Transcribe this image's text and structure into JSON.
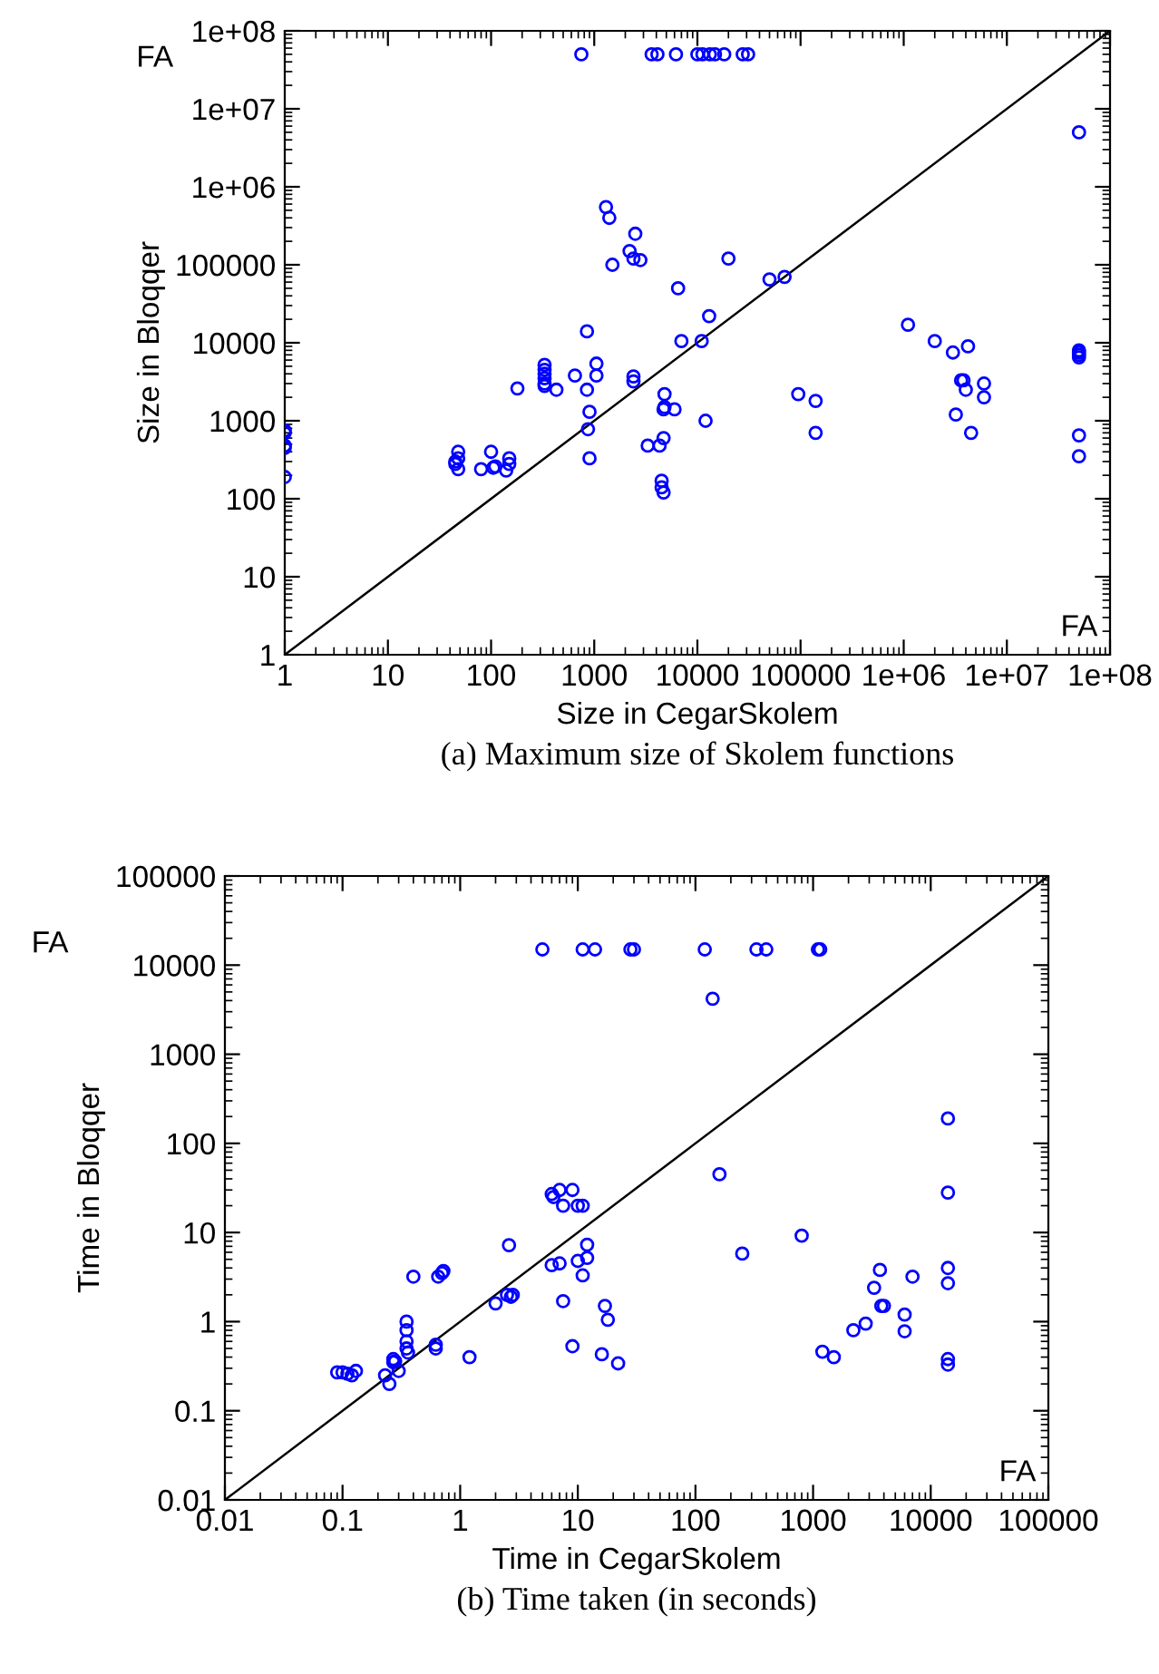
{
  "chart_data": [
    {
      "type": "scatter",
      "title": "(a) Maximum size of Skolem functions",
      "xlabel": "Size in CegarSkolem",
      "ylabel": "Size in Bloqqer",
      "log": "xy",
      "grid": false,
      "annotations": [
        "FA",
        "FA"
      ],
      "xlim": [
        1,
        100000000
      ],
      "ylim": [
        1,
        100000000
      ],
      "xticks": [
        1,
        10,
        100,
        1000,
        10000,
        100000,
        {
          "value": 1000000,
          "label": "1e+06"
        },
        {
          "value": 10000000,
          "label": "1e+07"
        },
        {
          "value": 100000000,
          "label": "1e+08"
        }
      ],
      "yticks": [
        1,
        10,
        100,
        1000,
        10000,
        100000,
        {
          "value": 1000000,
          "label": "1e+06"
        },
        {
          "value": 10000000,
          "label": "1e+07"
        },
        {
          "value": 100000000,
          "label": "1e+08"
        }
      ],
      "series": [
        {
          "color": "#0000ff",
          "marker": "circle",
          "x": [
            750,
            3600,
            4100,
            6200,
            10000,
            11200,
            13200,
            14800,
            18200,
            27500,
            31000,
            50000000,
            1,
            1,
            1,
            1,
            1,
            45,
            48,
            48,
            48,
            45,
            80,
            100,
            110,
            105,
            140,
            150,
            150,
            180,
            330,
            330,
            330,
            330,
            330,
            330,
            430,
            650,
            850,
            900,
            870,
            900,
            1050,
            1050,
            850,
            1300,
            1400,
            1500,
            2200,
            2500,
            2400,
            2800,
            2400,
            2400,
            3300,
            4300,
            4500,
            4500,
            4700,
            4700,
            4800,
            4800,
            4700,
            6000,
            7000,
            6500,
            11000,
            12000,
            13000,
            20000,
            50000,
            70000,
            95000,
            140000,
            140000,
            1100000,
            2000000,
            3000000,
            4200000,
            3200000,
            3600000,
            3800000,
            4000000,
            4500000,
            6000000,
            6000000,
            50000000,
            50000000,
            50000000,
            50000000,
            50000000,
            50000000
          ],
          "values": [
            50000000,
            50000000,
            50000000,
            50000000,
            50000000,
            50000000,
            50000000,
            50000000,
            50000000,
            50000000,
            50000000,
            5000000,
            700,
            750,
            450,
            480,
            190,
            300,
            400,
            330,
            240,
            280,
            240,
            400,
            260,
            250,
            230,
            330,
            280,
            2600,
            5200,
            4500,
            4000,
            3500,
            3000,
            2800,
            2500,
            3800,
            2500,
            1300,
            780,
            330,
            5400,
            3800,
            14000,
            550000,
            400000,
            100000,
            150000,
            250000,
            120000,
            115000,
            3200,
            3700,
            480,
            480,
            170,
            140,
            120,
            600,
            1500,
            2200,
            1400,
            1400,
            10500,
            50000,
            10500,
            1000,
            22000,
            120000,
            65000,
            70000,
            2200,
            1800,
            700,
            17000,
            10500,
            7500,
            9000,
            1200,
            3300,
            3300,
            2500,
            700,
            3000,
            2000,
            8000,
            7500,
            7000,
            6500,
            650,
            350
          ]
        },
        {
          "type": "line",
          "color": "#000000",
          "x": [
            1,
            100000000
          ],
          "values": [
            1,
            100000000
          ]
        }
      ]
    },
    {
      "type": "scatter",
      "title": "(b) Time taken (in seconds)",
      "xlabel": "Time in CegarSkolem",
      "ylabel": "Time in Bloqqer",
      "log": "xy",
      "grid": false,
      "annotations": [
        "FA",
        "FA"
      ],
      "xlim": [
        0.01,
        100000
      ],
      "ylim": [
        0.01,
        100000
      ],
      "xticks": [
        0.01,
        0.1,
        1,
        10,
        100,
        1000,
        10000,
        100000
      ],
      "yticks": [
        0.01,
        0.1,
        1,
        10,
        100,
        1000,
        10000,
        100000
      ],
      "series": [
        {
          "color": "#0000ff",
          "marker": "circle",
          "x": [
            5,
            11,
            14,
            28,
            30,
            120,
            330,
            400,
            1100,
            1150,
            140,
            160,
            14000,
            14000,
            0.09,
            0.1,
            0.11,
            0.12,
            0.13,
            0.23,
            0.25,
            0.27,
            0.27,
            0.28,
            0.3,
            0.35,
            0.35,
            0.35,
            0.35,
            0.36,
            0.4,
            0.65,
            0.7,
            0.72,
            0.62,
            0.62,
            1.2,
            2,
            2.5,
            2.7,
            2.8,
            2.6,
            6,
            6.2,
            7,
            7.5,
            9,
            10,
            11,
            6,
            7,
            10,
            12,
            12,
            11,
            7.5,
            9,
            16,
            17,
            18,
            22,
            250,
            800,
            1200,
            1500,
            2200,
            2800,
            3300,
            3700,
            3800,
            4000,
            6000,
            6000,
            7000,
            14000,
            14000,
            14000,
            14000
          ],
          "values": [
            15000,
            15000,
            15000,
            15000,
            15000,
            15000,
            15000,
            15000,
            15000,
            15000,
            4200,
            45,
            190,
            28,
            0.27,
            0.27,
            0.26,
            0.25,
            0.28,
            0.25,
            0.2,
            0.38,
            0.35,
            0.36,
            0.28,
            1.0,
            0.8,
            0.6,
            0.5,
            0.45,
            3.2,
            3.2,
            3.5,
            3.7,
            0.5,
            0.55,
            0.4,
            1.6,
            2,
            1.9,
            2,
            7.2,
            27,
            25,
            30,
            20,
            30,
            20,
            20,
            4.3,
            4.5,
            4.8,
            5.2,
            7.3,
            3.3,
            1.7,
            0.53,
            0.43,
            1.5,
            1.05,
            0.34,
            5.8,
            9.2,
            0.46,
            0.4,
            0.8,
            0.95,
            2.4,
            3.8,
            1.5,
            1.5,
            1.2,
            0.78,
            3.2,
            4,
            2.7,
            0.38,
            0.33
          ]
        },
        {
          "type": "line",
          "color": "#000000",
          "x": [
            0.01,
            100000
          ],
          "values": [
            0.01,
            100000
          ]
        }
      ]
    }
  ]
}
